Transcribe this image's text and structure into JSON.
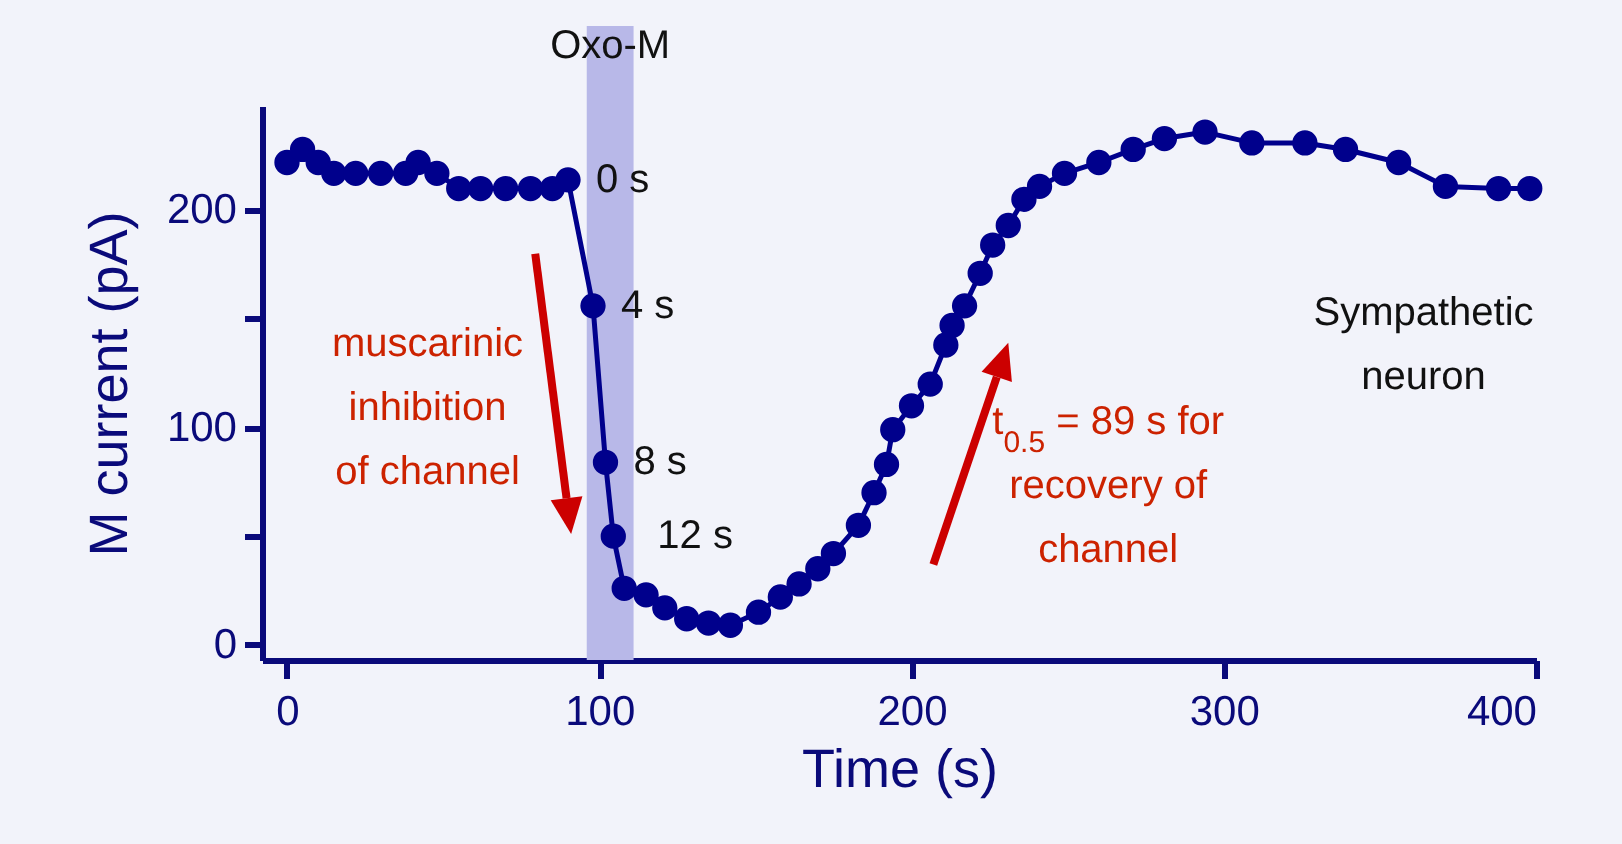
{
  "chart_data": {
    "type": "line",
    "xlabel": "Time (s)",
    "ylabel": "M current  (pA)",
    "xlim": [
      -8,
      400
    ],
    "ylim": [
      -7,
      248
    ],
    "xticks": [
      0,
      100,
      200,
      300,
      400
    ],
    "yticks": [
      0,
      {
        "value": 50,
        "label": null
      },
      100,
      {
        "value": 150,
        "label": null
      },
      200
    ],
    "x": [
      0,
      5,
      10,
      15,
      22,
      30,
      38,
      42,
      48,
      55,
      62,
      70,
      78,
      85,
      90,
      98,
      102,
      104.5,
      108,
      115,
      121,
      128,
      135,
      142,
      151,
      158,
      164,
      170,
      175,
      183,
      188,
      192,
      194,
      200,
      206,
      211,
      213,
      217,
      222,
      226,
      231,
      236,
      241,
      249,
      260,
      271,
      281,
      294,
      309,
      326,
      339,
      356,
      371,
      388,
      398
    ],
    "series": [
      {
        "color": "#00008c",
        "values": [
          222,
          228,
          222,
          217,
          217,
          217,
          217,
          222,
          217,
          210,
          210,
          210,
          210,
          210,
          214,
          156,
          84,
          50,
          26,
          23,
          17,
          12,
          10,
          9,
          15,
          22,
          28,
          35,
          42,
          55,
          70,
          83,
          99,
          110,
          120,
          138,
          147,
          156,
          171,
          184,
          193,
          205,
          211,
          217,
          222,
          228,
          233,
          236,
          231,
          231,
          228,
          222,
          211,
          210,
          210
        ]
      }
    ],
    "marker": "circle",
    "grid": false,
    "bands": [
      {
        "axis": "x",
        "from": 96,
        "to": 111,
        "label": "Oxo-M",
        "color": "#b8b8e8"
      }
    ],
    "annotations": [
      {
        "text": "0 s",
        "x": 90,
        "y": 214
      },
      {
        "text": "4 s",
        "x": 98,
        "y": 156
      },
      {
        "text": "8 s",
        "x": 102,
        "y": 84
      },
      {
        "text": "12 s",
        "x": 104.5,
        "y": 50
      },
      "muscarinic\ninhibition\nof channel",
      "t$_{0.5}$ = 89 s for\nrecovery of\nchannel",
      "Sympathetic\nneuron"
    ]
  }
}
